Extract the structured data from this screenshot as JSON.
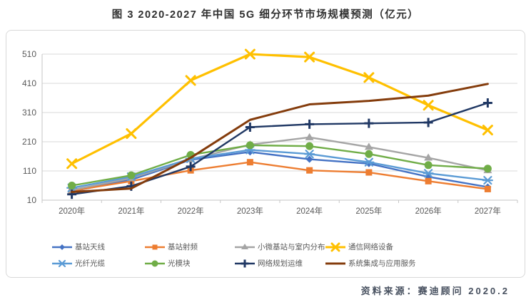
{
  "figure": {
    "title": "图 3 2020-2027 年中国 5G 细分环节市场规模预测（亿元）",
    "source": "资料来源：赛迪顾问 2020.2",
    "unit": "亿元"
  },
  "chart_data": {
    "type": "line",
    "title": "2020-2027 年中国 5G 细分环节市场规模预测",
    "categories": [
      "2020年",
      "2021年",
      "2022年",
      "2023年",
      "2024年",
      "2025年",
      "2026年",
      "2027年"
    ],
    "series": [
      {
        "name": "基站天线",
        "color": "#4472C4",
        "marker": "diamond",
        "values": [
          40,
          80,
          148,
          175,
          150,
          135,
          90,
          55
        ]
      },
      {
        "name": "基站射频",
        "color": "#ED7D31",
        "marker": "square",
        "values": [
          42,
          75,
          112,
          140,
          112,
          105,
          75,
          48
        ]
      },
      {
        "name": "小微基站与室内分布",
        "color": "#A5A5A5",
        "marker": "triangle",
        "values": [
          45,
          85,
          150,
          200,
          225,
          192,
          155,
          112
        ]
      },
      {
        "name": "通信网络设备",
        "color": "#FFC000",
        "marker": "x",
        "values": [
          135,
          238,
          420,
          510,
          500,
          430,
          335,
          250
        ]
      },
      {
        "name": "光纤光缆",
        "color": "#5B9BD5",
        "marker": "asterisk",
        "values": [
          52,
          90,
          152,
          182,
          168,
          140,
          102,
          78
        ]
      },
      {
        "name": "光模块",
        "color": "#70AD47",
        "marker": "circle",
        "values": [
          60,
          95,
          165,
          198,
          195,
          168,
          130,
          118
        ]
      },
      {
        "name": "网络规划运维",
        "color": "#203864",
        "marker": "plus",
        "values": [
          30,
          58,
          125,
          260,
          270,
          273,
          276,
          343
        ]
      },
      {
        "name": "系统集成与应用服务",
        "color": "#843C0C",
        "marker": "none",
        "values": [
          38,
          50,
          155,
          285,
          338,
          350,
          368,
          408
        ]
      }
    ],
    "xlabel": "",
    "ylabel": "",
    "ylim": [
      10,
      510
    ],
    "y_ticks": [
      10,
      110,
      210,
      310,
      410,
      510
    ],
    "grid": true,
    "legend_position": "bottom",
    "gridline_color": "#d9d9d9",
    "axis_line_color": "#c6c6c6",
    "axis_text_color": "#595959"
  }
}
